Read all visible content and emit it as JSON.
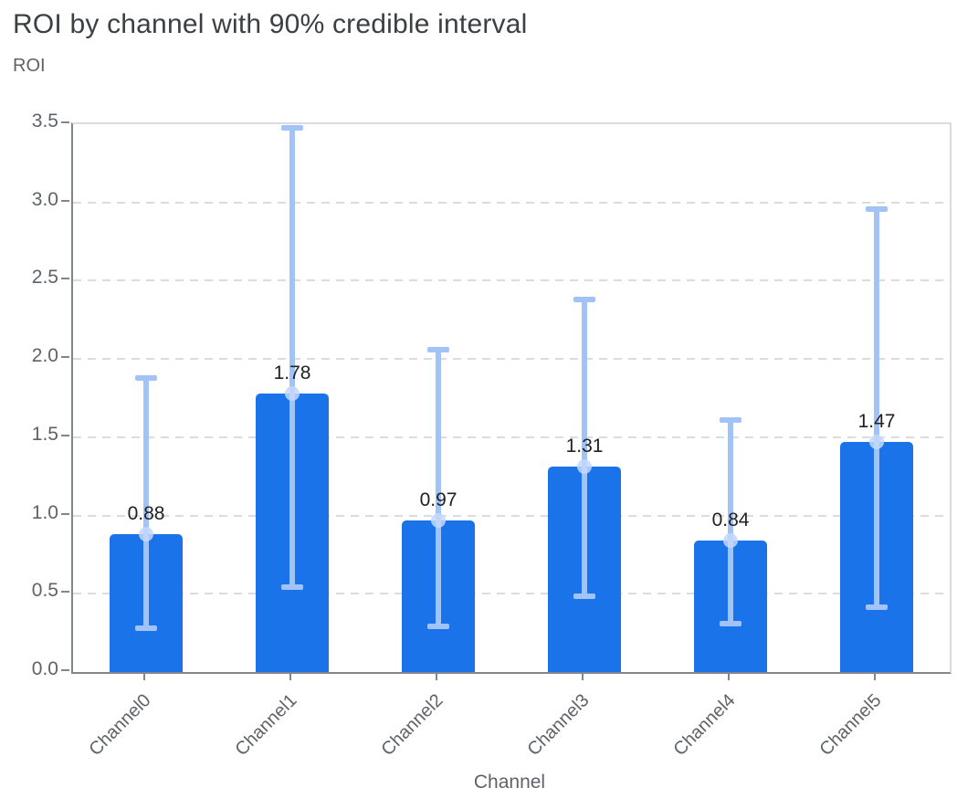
{
  "chart_data": {
    "type": "bar",
    "title": "ROI by channel with 90% credible interval",
    "subtitle": "ROI",
    "xlabel": "Channel",
    "ylabel": "ROI",
    "categories": [
      "Channel0",
      "Channel1",
      "Channel2",
      "Channel3",
      "Channel4",
      "Channel5"
    ],
    "values": [
      0.88,
      1.78,
      0.97,
      1.31,
      0.84,
      1.47
    ],
    "value_labels": [
      "0.88",
      "1.78",
      "0.97",
      "1.31",
      "0.84",
      "1.47"
    ],
    "ci_low": [
      0.27,
      0.53,
      0.28,
      0.47,
      0.3,
      0.4
    ],
    "ci_high": [
      1.89,
      3.49,
      2.07,
      2.39,
      1.62,
      2.97
    ],
    "ylim": [
      0,
      3.5
    ],
    "yticks": [
      0,
      0.5,
      1.0,
      1.5,
      2.0,
      2.5,
      3.0,
      3.5
    ],
    "ytick_labels": [
      "0.0",
      "0.5",
      "1.0",
      "1.5",
      "2.0",
      "2.5",
      "3.0",
      "3.5"
    ],
    "grid": "dashed horizontal",
    "legend": "none",
    "colors": {
      "bar": "#1a73e8",
      "error_bar": "#a2c3f8",
      "mean_marker": "#c4d8fb",
      "gridline": "#dadce0",
      "axis": "#80868b",
      "frame": "#dadce0",
      "title_text": "#3c4043",
      "axis_text": "#5f6368",
      "value_text": "#202124"
    }
  }
}
